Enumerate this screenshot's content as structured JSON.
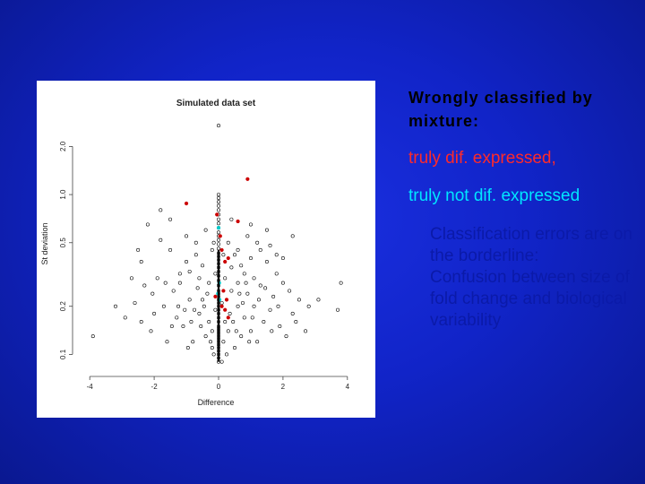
{
  "colors": {
    "background": "#1124c8",
    "heading": "#000000",
    "red_text": "#ff2a2a",
    "cyan_text": "#00e6ff",
    "bullet_text": "#0b1aa8",
    "points_red": "#cc0000",
    "points_cyan": "#00cccc"
  },
  "slide": {
    "heading": "Wrongly classified by mixture:",
    "red_line": "truly dif. expressed,",
    "cyan_line": "truly not dif. expressed",
    "bullets": [
      "Classification errors are on the borderline:",
      "Confusion between size of fold change and biological variability"
    ]
  },
  "chart_data": {
    "type": "scatter",
    "title": "Simulated data set",
    "xlabel": "Difference",
    "ylabel": "St deviation",
    "xlim": [
      -4.2,
      4.2
    ],
    "y_scale": "log",
    "ylim": [
      0.085,
      3.0
    ],
    "x_ticks": [
      -4,
      -2,
      0,
      2,
      4
    ],
    "y_ticks": [
      0.1,
      0.2,
      0.5,
      1.0,
      2.0
    ],
    "y_tick_labels": [
      "0.1",
      "0.2",
      "0.5",
      "1.0",
      "2.0"
    ],
    "series": [
      {
        "role": "not differentially expressed",
        "marker": "open-circle",
        "color": "#000000",
        "points": [
          [
            0.0,
            2.7
          ],
          [
            3.8,
            0.28
          ],
          [
            3.1,
            0.22
          ],
          [
            3.7,
            0.19
          ],
          [
            -3.9,
            0.13
          ],
          [
            2.3,
            0.55
          ],
          [
            -2.2,
            0.65
          ],
          [
            -1.8,
            0.52
          ],
          [
            -2.4,
            0.38
          ],
          [
            -1.5,
            0.45
          ],
          [
            -1.2,
            0.32
          ],
          [
            -1.0,
            0.55
          ],
          [
            -0.7,
            0.42
          ],
          [
            -0.5,
            0.36
          ],
          [
            -0.3,
            0.28
          ],
          [
            -0.9,
            0.22
          ],
          [
            -1.4,
            0.25
          ],
          [
            -1.7,
            0.2
          ],
          [
            -2.0,
            0.18
          ],
          [
            -2.6,
            0.21
          ],
          [
            -2.9,
            0.17
          ],
          [
            -2.1,
            0.14
          ],
          [
            -1.6,
            0.12
          ],
          [
            -1.1,
            0.15
          ],
          [
            -0.6,
            0.18
          ],
          [
            -0.4,
            0.13
          ],
          [
            -0.2,
            0.11
          ],
          [
            -0.8,
            0.12
          ],
          [
            -1.3,
            0.17
          ],
          [
            -0.5,
            0.22
          ],
          [
            -0.3,
            0.16
          ],
          [
            -1.9,
            0.3
          ],
          [
            -2.3,
            0.27
          ],
          [
            -1.0,
            0.38
          ],
          [
            -0.6,
            0.3
          ],
          [
            -0.2,
            0.45
          ],
          [
            0.3,
            0.5
          ],
          [
            0.5,
            0.42
          ],
          [
            0.7,
            0.36
          ],
          [
            0.9,
            0.55
          ],
          [
            1.1,
            0.3
          ],
          [
            1.3,
            0.45
          ],
          [
            1.5,
            0.38
          ],
          [
            1.8,
            0.32
          ],
          [
            2.0,
            0.28
          ],
          [
            2.2,
            0.25
          ],
          [
            2.5,
            0.22
          ],
          [
            0.4,
            0.25
          ],
          [
            0.6,
            0.2
          ],
          [
            0.8,
            0.17
          ],
          [
            1.0,
            0.14
          ],
          [
            1.2,
            0.12
          ],
          [
            1.4,
            0.16
          ],
          [
            1.6,
            0.19
          ],
          [
            1.9,
            0.15
          ],
          [
            2.1,
            0.13
          ],
          [
            2.3,
            0.18
          ],
          [
            2.7,
            0.14
          ],
          [
            0.3,
            0.14
          ],
          [
            0.5,
            0.11
          ],
          [
            0.7,
            0.13
          ],
          [
            0.9,
            0.24
          ],
          [
            1.1,
            0.2
          ],
          [
            1.3,
            0.27
          ],
          [
            1.7,
            0.23
          ],
          [
            0.2,
            0.3
          ],
          [
            0.4,
            0.35
          ],
          [
            0.6,
            0.28
          ],
          [
            0.8,
            0.32
          ],
          [
            1.0,
            0.4
          ],
          [
            1.2,
            0.5
          ],
          [
            1.5,
            0.6
          ],
          [
            -1.8,
            0.8
          ],
          [
            -1.5,
            0.7
          ],
          [
            -0.4,
            0.6
          ],
          [
            0.4,
            0.7
          ],
          [
            1.0,
            0.65
          ],
          [
            1.6,
            0.48
          ],
          [
            -2.5,
            0.45
          ],
          [
            -3.2,
            0.2
          ],
          [
            -2.7,
            0.3
          ],
          [
            2.8,
            0.2
          ],
          [
            2.0,
            0.4
          ],
          [
            -1.2,
            0.28
          ],
          [
            -0.9,
            0.33
          ],
          [
            0.1,
            0.21
          ],
          [
            -0.1,
            0.19
          ],
          [
            0.2,
            0.16
          ],
          [
            -0.2,
            0.14
          ],
          [
            0.35,
            0.18
          ],
          [
            -0.35,
            0.24
          ],
          [
            0.15,
            0.12
          ],
          [
            -0.15,
            0.1
          ],
          [
            0.25,
            0.1
          ],
          [
            -0.25,
            0.12
          ],
          [
            0.45,
            0.16
          ],
          [
            -0.45,
            0.2
          ],
          [
            0.55,
            0.14
          ],
          [
            -0.55,
            0.15
          ],
          [
            0.65,
            0.24
          ],
          [
            -0.65,
            0.26
          ],
          [
            0.75,
            0.21
          ],
          [
            -0.75,
            0.19
          ],
          [
            0.85,
            0.28
          ],
          [
            -0.85,
            0.16
          ],
          [
            1.25,
            0.22
          ],
          [
            -1.25,
            0.2
          ],
          [
            1.45,
            0.26
          ],
          [
            -1.45,
            0.15
          ],
          [
            1.65,
            0.14
          ],
          [
            -1.65,
            0.28
          ],
          [
            2.4,
            0.16
          ],
          [
            -2.4,
            0.16
          ],
          [
            1.85,
            0.2
          ],
          [
            -2.05,
            0.24
          ],
          [
            0.95,
            0.12
          ],
          [
            -0.95,
            0.11
          ],
          [
            1.05,
            0.17
          ],
          [
            -1.05,
            0.19
          ],
          [
            0.1,
            0.09
          ],
          [
            -0.1,
            0.32
          ],
          [
            0.15,
            0.42
          ],
          [
            -0.15,
            0.5
          ],
          [
            0.6,
            0.45
          ],
          [
            -0.7,
            0.5
          ],
          [
            1.8,
            0.42
          ]
        ]
      },
      {
        "role": "column at zero",
        "marker": "open-circle",
        "color": "#000000",
        "x": 0,
        "y_values": [
          1.0,
          0.95,
          0.9,
          0.85,
          0.8,
          0.75,
          0.7,
          0.66,
          0.62,
          0.58,
          0.55,
          0.52,
          0.49,
          0.46,
          0.43,
          0.41,
          0.39,
          0.37,
          0.35,
          0.33,
          0.31,
          0.29,
          0.27,
          0.25,
          0.24,
          0.23,
          0.22,
          0.21,
          0.2,
          0.19,
          0.18,
          0.17,
          0.16,
          0.15,
          0.145,
          0.14,
          0.135,
          0.13,
          0.125,
          0.12,
          0.115,
          0.11,
          0.105,
          0.1,
          0.095,
          0.09
        ]
      },
      {
        "role": "truly differentially expressed, misclassified",
        "marker": "filled-circle",
        "color": "#cc0000",
        "points": [
          [
            -1.0,
            0.88
          ],
          [
            0.9,
            1.25
          ],
          [
            0.6,
            0.68
          ],
          [
            0.1,
            0.45
          ],
          [
            0.2,
            0.38
          ],
          [
            0.3,
            0.4
          ],
          [
            0.15,
            0.25
          ],
          [
            0.25,
            0.22
          ],
          [
            -0.1,
            0.23
          ],
          [
            0.1,
            0.2
          ],
          [
            0.2,
            0.19
          ],
          [
            0.05,
            0.55
          ],
          [
            -0.05,
            0.75
          ],
          [
            0.3,
            0.17
          ]
        ]
      },
      {
        "role": "truly not differentially expressed, misclassified",
        "marker": "filled-circle",
        "color": "#00cccc",
        "points": [
          [
            0.0,
            0.62
          ],
          [
            0.02,
            0.28
          ],
          [
            -0.02,
            0.24
          ],
          [
            0.03,
            0.22
          ]
        ]
      }
    ]
  }
}
